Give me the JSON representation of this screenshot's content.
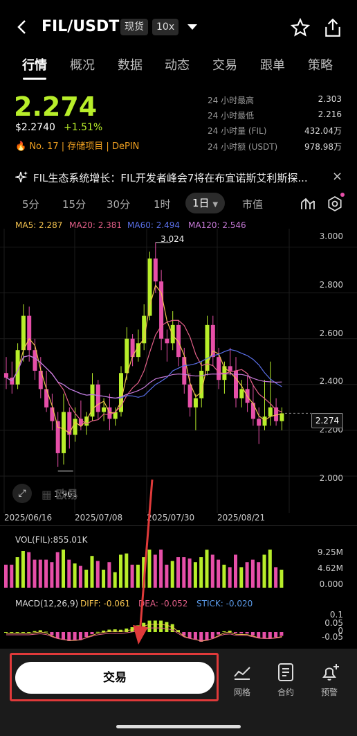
{
  "header": {
    "pair": "FIL/USDT",
    "tag_spot": "现货",
    "tag_leverage": "10x"
  },
  "tabs": [
    "行情",
    "概况",
    "数据",
    "动态",
    "交易",
    "跟单",
    "策略"
  ],
  "price": {
    "last": "2.274",
    "usd": "$2.2740",
    "change": "+1.51%",
    "rank": "No. 17",
    "tag1": "存储项目",
    "tag2": "DePIN",
    "sep": "|"
  },
  "stats": [
    {
      "label": "24 小时最高",
      "value": "2.303"
    },
    {
      "label": "24 小时最低",
      "value": "2.216"
    },
    {
      "label": "24 小时量 (FIL)",
      "value": "432.04万"
    },
    {
      "label": "24 小时额 (USDT)",
      "value": "978.98万"
    }
  ],
  "news": "FIL生态系统增长：FIL开发者峰会7将在布宜诺斯艾利斯探...",
  "timeframes": [
    "5分",
    "15分",
    "30分",
    "1时",
    "1日",
    "市值"
  ],
  "ma": {
    "ma5": "MA5: 2.287",
    "ma20": "MA20: 2.381",
    "ma60": "MA60: 2.494",
    "ma120": "MA120: 2.546"
  },
  "price_axis": [
    "3.000",
    "2.800",
    "2.600",
    "2.400",
    "2.200",
    "2.000"
  ],
  "current_price_tag": "2.274",
  "high_label": "3.024",
  "low_label": "1.961",
  "dates": [
    "2025/06/16",
    "2025/07/08",
    "2025/07/30",
    "2025/08/21"
  ],
  "vol": {
    "label": "VOL(FIL):855.01K",
    "axis": [
      "9.25M",
      "4.62M",
      "0.000"
    ]
  },
  "macd": {
    "label": "MACD(12,26,9)",
    "diff": "DIFF: -0.061",
    "dea": "DEA: -0.052",
    "stick": "STICK: -0.020",
    "axis": [
      "0.1",
      "0.05",
      "0",
      "-0.05"
    ]
  },
  "bottom": {
    "trade": "交易",
    "grid": "网格",
    "contract": "合约",
    "alert": "预警"
  },
  "colors": {
    "up": "#b8ee2a",
    "down": "#e64fa8",
    "accent": "#e03a3a"
  },
  "chart_data": {
    "type": "candlestick",
    "ylim": [
      1.9,
      3.05
    ],
    "candles": [
      [
        2.45,
        2.52,
        2.38,
        2.43
      ],
      [
        2.43,
        2.5,
        2.36,
        2.4
      ],
      [
        2.4,
        2.58,
        2.38,
        2.55
      ],
      [
        2.55,
        2.75,
        2.5,
        2.7
      ],
      [
        2.7,
        2.74,
        2.5,
        2.55
      ],
      [
        2.55,
        2.6,
        2.42,
        2.46
      ],
      [
        2.46,
        2.52,
        2.34,
        2.38
      ],
      [
        2.38,
        2.46,
        2.28,
        2.3
      ],
      [
        2.3,
        2.36,
        2.2,
        2.24
      ],
      [
        2.24,
        2.28,
        2.04,
        2.1
      ],
      [
        2.1,
        2.36,
        2.05,
        2.28
      ],
      [
        2.28,
        2.3,
        2.12,
        2.18
      ],
      [
        2.18,
        2.3,
        2.15,
        2.25
      ],
      [
        2.25,
        2.33,
        2.2,
        2.22
      ],
      [
        2.22,
        2.28,
        2.18,
        2.26
      ],
      [
        2.26,
        2.45,
        2.24,
        2.4
      ],
      [
        2.4,
        2.42,
        2.25,
        2.28
      ],
      [
        2.28,
        2.34,
        2.24,
        2.3
      ],
      [
        2.3,
        2.36,
        2.2,
        2.25
      ],
      [
        2.25,
        2.3,
        2.22,
        2.28
      ],
      [
        2.28,
        2.48,
        2.26,
        2.45
      ],
      [
        2.45,
        2.65,
        2.42,
        2.6
      ],
      [
        2.6,
        2.62,
        2.48,
        2.52
      ],
      [
        2.52,
        2.64,
        2.5,
        2.58
      ],
      [
        2.58,
        2.75,
        2.55,
        2.7
      ],
      [
        2.7,
        2.98,
        2.68,
        2.95
      ],
      [
        2.95,
        3.02,
        2.8,
        2.85
      ],
      [
        2.85,
        2.9,
        2.55,
        2.6
      ],
      [
        2.6,
        2.64,
        2.5,
        2.58
      ],
      [
        2.58,
        2.72,
        2.55,
        2.66
      ],
      [
        2.66,
        2.68,
        2.48,
        2.52
      ],
      [
        2.52,
        2.56,
        2.36,
        2.4
      ],
      [
        2.4,
        2.45,
        2.26,
        2.3
      ],
      [
        2.3,
        2.36,
        2.2,
        2.34
      ],
      [
        2.34,
        2.5,
        2.3,
        2.46
      ],
      [
        2.46,
        2.7,
        2.44,
        2.66
      ],
      [
        2.66,
        2.7,
        2.48,
        2.52
      ],
      [
        2.52,
        2.56,
        2.38,
        2.42
      ],
      [
        2.42,
        2.5,
        2.36,
        2.48
      ],
      [
        2.48,
        2.56,
        2.44,
        2.46
      ],
      [
        2.46,
        2.52,
        2.3,
        2.34
      ],
      [
        2.34,
        2.42,
        2.3,
        2.38
      ],
      [
        2.38,
        2.44,
        2.28,
        2.32
      ],
      [
        2.32,
        2.4,
        2.22,
        2.25
      ],
      [
        2.25,
        2.3,
        2.14,
        2.22
      ],
      [
        2.22,
        2.42,
        2.2,
        2.26
      ],
      [
        2.26,
        2.5,
        2.22,
        2.3
      ],
      [
        2.3,
        2.34,
        2.22,
        2.24
      ],
      [
        2.24,
        2.3,
        2.2,
        2.274
      ]
    ]
  }
}
